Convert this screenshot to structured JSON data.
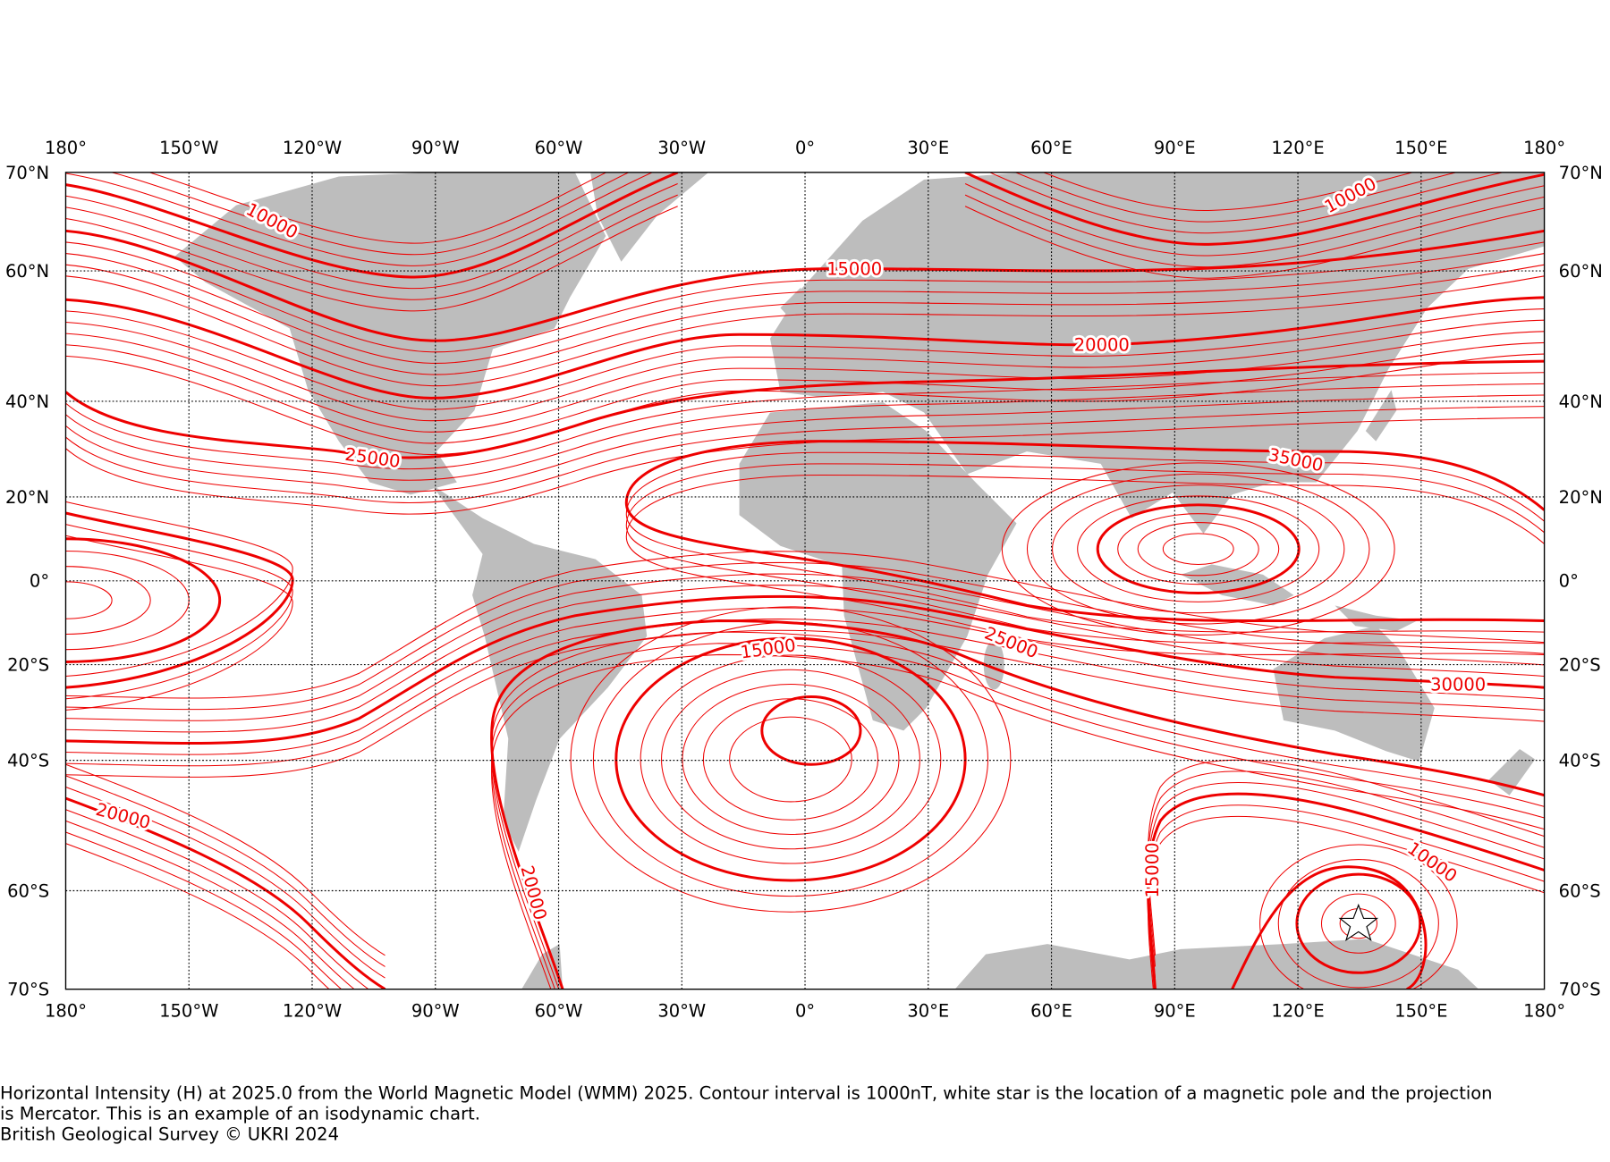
{
  "map": {
    "lon_labels": [
      "180°",
      "150°W",
      "120°W",
      "90°W",
      "60°W",
      "30°W",
      "0°",
      "30°E",
      "60°E",
      "90°E",
      "120°E",
      "150°E",
      "180°"
    ],
    "lat_labels": [
      "70°N",
      "60°N",
      "40°N",
      "20°N",
      "0°",
      "20°S",
      "40°S",
      "60°S",
      "70°S"
    ],
    "contour_labels": [
      10000,
      15000,
      20000,
      25000,
      35000,
      25000,
      30000,
      15000,
      20000,
      20000,
      15000,
      10000,
      10000
    ],
    "caption_lines": [
      "Horizontal Intensity (H) at 2025.0 from the World Magnetic Model (WMM) 2025. Contour interval is 1000nT, white star is the location of a magnetic pole and the projection",
      "is Mercator. This is an example of an isodynamic chart."
    ],
    "credit": "British Geological Survey © UKRI 2024"
  }
}
